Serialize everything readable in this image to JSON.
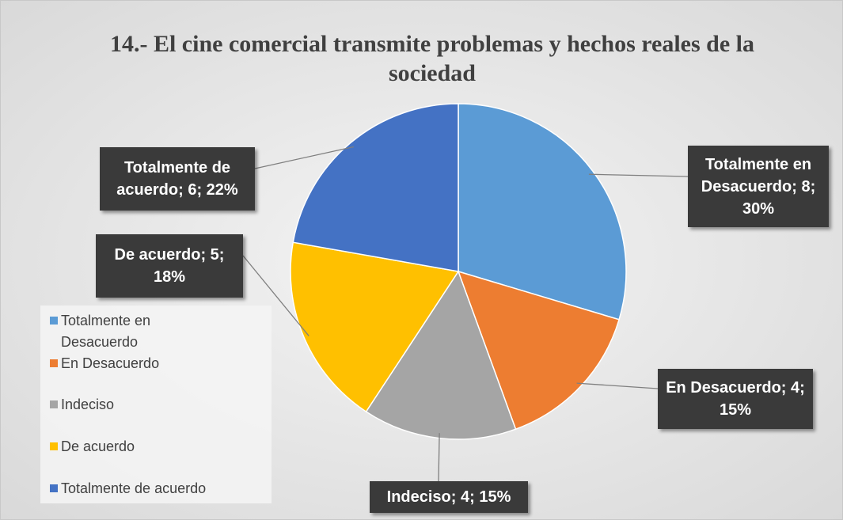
{
  "chart_data": {
    "type": "pie",
    "title": "14.- El cine comercial transmite problemas y hechos reales de la sociedad",
    "categories": [
      "Totalmente en Desacuerdo",
      "En Desacuerdo",
      "Indeciso",
      "De acuerdo",
      "Totalmente de acuerdo"
    ],
    "values": [
      8,
      4,
      4,
      5,
      6
    ],
    "value_labels": [
      "Totalmente en Desacuerdo; 8; 30%",
      "En Desacuerdo; 4; 15%",
      "Indeciso; 4; 15%",
      "De acuerdo; 5; 18%",
      "Totalmente de acuerdo; 6; 22%"
    ],
    "colors": [
      "#5b9bd5",
      "#ed7d31",
      "#a5a5a5",
      "#ffc000",
      "#4472c4"
    ],
    "legend": "left"
  }
}
